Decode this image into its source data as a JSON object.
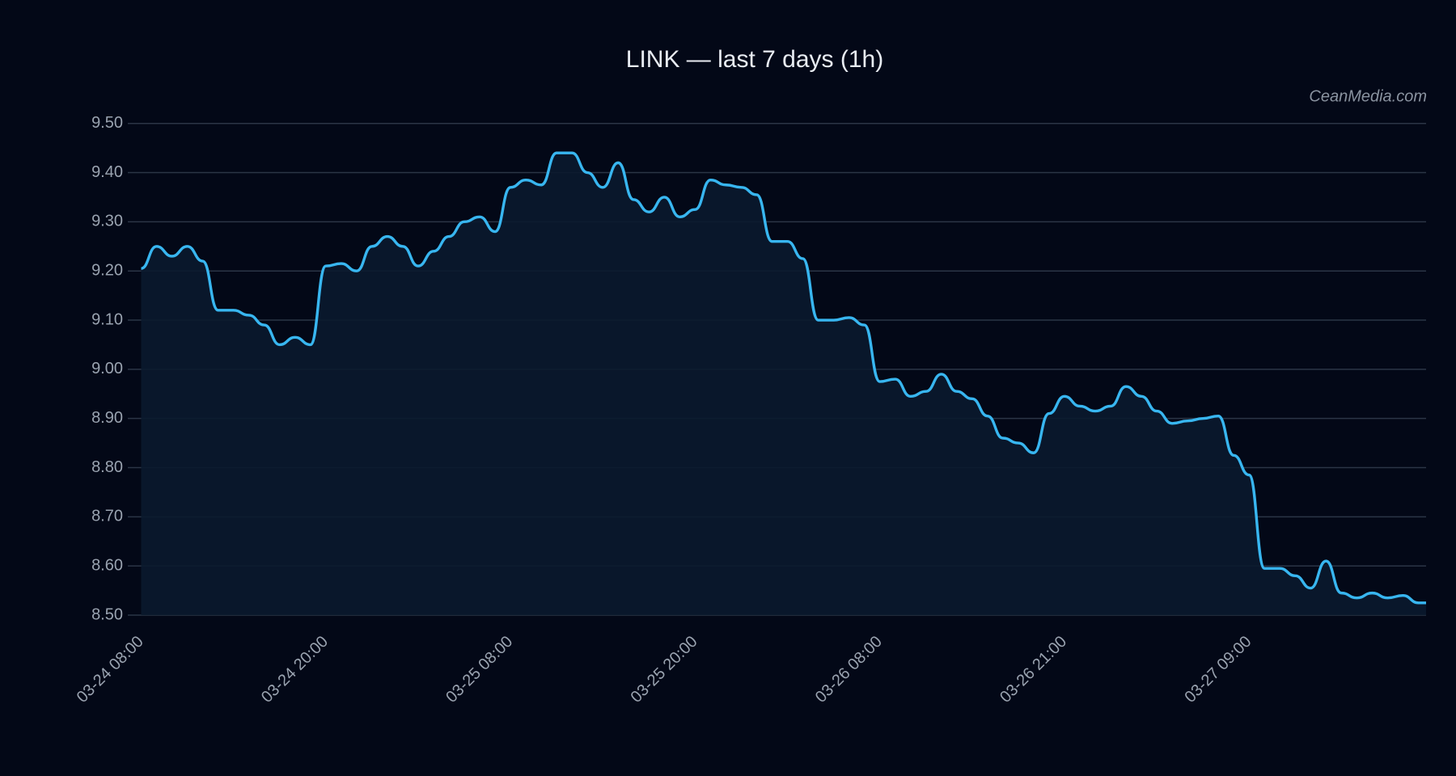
{
  "chart_data": {
    "type": "line",
    "title": "LINK — last 7 days (1h)",
    "watermark": "CeanMedia.com",
    "categories": [
      "03-24 08:00",
      null,
      null,
      null,
      null,
      null,
      null,
      null,
      null,
      null,
      null,
      null,
      "03-24 20:00",
      null,
      null,
      null,
      null,
      null,
      null,
      null,
      null,
      null,
      null,
      null,
      "03-25 08:00",
      null,
      null,
      null,
      null,
      null,
      null,
      null,
      null,
      null,
      null,
      null,
      "03-25 20:00",
      null,
      null,
      null,
      null,
      null,
      null,
      null,
      null,
      null,
      null,
      null,
      "03-26 08:00",
      null,
      null,
      null,
      null,
      null,
      null,
      null,
      null,
      null,
      null,
      null,
      "03-26 21:00",
      null,
      null,
      null,
      null,
      null,
      null,
      null,
      null,
      null,
      null,
      null,
      "03-27 09:00",
      null,
      null,
      null,
      null,
      null,
      null,
      null,
      null,
      null,
      null,
      null
    ],
    "series": [
      {
        "name": "LINK",
        "color": "#38b6f0",
        "values": [
          9.205,
          9.25,
          9.23,
          9.25,
          9.22,
          9.12,
          9.12,
          9.11,
          9.09,
          9.05,
          9.065,
          9.05,
          9.21,
          9.215,
          9.2,
          9.25,
          9.27,
          9.25,
          9.21,
          9.24,
          9.27,
          9.3,
          9.31,
          9.28,
          9.37,
          9.385,
          9.375,
          9.44,
          9.44,
          9.4,
          9.37,
          9.42,
          9.345,
          9.32,
          9.35,
          9.31,
          9.325,
          9.385,
          9.375,
          9.37,
          9.355,
          9.26,
          9.26,
          9.225,
          9.1,
          9.1,
          9.105,
          9.09,
          8.975,
          8.98,
          8.945,
          8.955,
          8.99,
          8.955,
          8.94,
          8.905,
          8.86,
          8.85,
          8.83,
          8.91,
          8.945,
          8.925,
          8.915,
          8.925,
          8.965,
          8.945,
          8.915,
          8.89,
          8.895,
          8.9,
          8.905,
          8.825,
          8.785,
          8.595,
          8.595,
          8.58,
          8.555,
          8.61,
          8.545,
          8.535,
          8.545,
          8.535,
          8.54,
          8.525
        ]
      }
    ],
    "ylim": [
      8.5,
      9.5
    ],
    "yticks": [
      {
        "value": 8.5,
        "label": "8.50"
      },
      {
        "value": 8.6,
        "label": "8.60"
      },
      {
        "value": 8.7,
        "label": "8.70"
      },
      {
        "value": 8.8,
        "label": "8.80"
      },
      {
        "value": 8.9,
        "label": "8.90"
      },
      {
        "value": 9.0,
        "label": "9.00"
      },
      {
        "value": 9.1,
        "label": "9.10"
      },
      {
        "value": 9.2,
        "label": "9.20"
      },
      {
        "value": 9.3,
        "label": "9.30"
      },
      {
        "value": 9.4,
        "label": "9.40"
      },
      {
        "value": 9.5,
        "label": "9.50"
      }
    ],
    "grid": true,
    "area": true
  }
}
